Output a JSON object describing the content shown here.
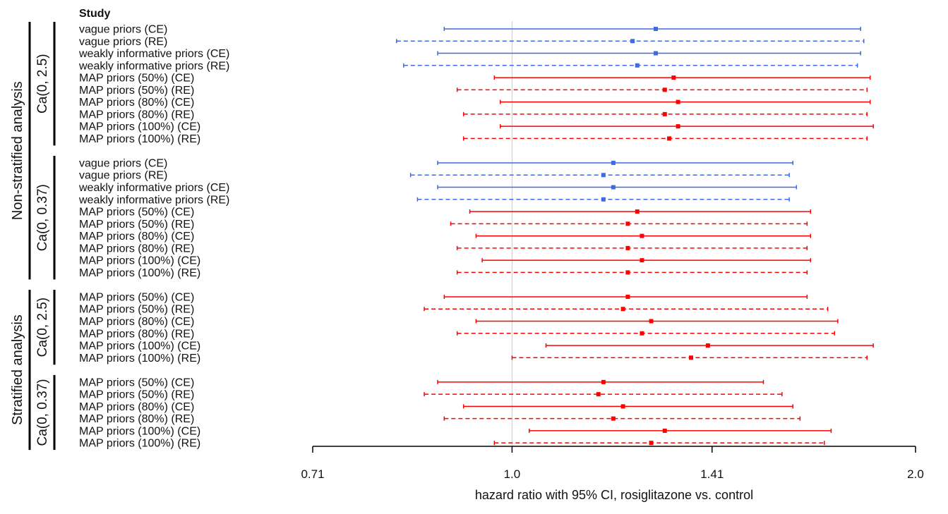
{
  "chart_data": {
    "type": "forest",
    "header": "Study",
    "xlabel": "hazard ratio with 95% CI, rosiglitazone vs. control",
    "x_scale": "log",
    "xlim": [
      0.71,
      2.0
    ],
    "ticks": [
      {
        "value": 0.71,
        "label": "0.71"
      },
      {
        "value": 1.0,
        "label": "1.0"
      },
      {
        "value": 1.41,
        "label": "1.41"
      },
      {
        "value": 2.0,
        "label": "2.0"
      }
    ],
    "reference_line": 1.0,
    "colors": {
      "vague_weak": "#4169e1",
      "map": "#ff0000",
      "reference": "#cccccc",
      "axis": "#000000"
    },
    "groups": [
      {
        "label": "Non-stratified analysis",
        "subgroups": [
          {
            "label": "Ca(0, 2.5)",
            "rows": [
              {
                "label": "vague priors (CE)",
                "est": 1.28,
                "lo": 0.89,
                "hi": 1.82,
                "color": "blue",
                "dashed": false
              },
              {
                "label": "vague priors (RE)",
                "est": 1.23,
                "lo": 0.82,
                "hi": 1.83,
                "color": "blue",
                "dashed": true
              },
              {
                "label": "weakly informative priors (CE)",
                "est": 1.28,
                "lo": 0.88,
                "hi": 1.82,
                "color": "blue",
                "dashed": false
              },
              {
                "label": "weakly informative priors (RE)",
                "est": 1.24,
                "lo": 0.83,
                "hi": 1.81,
                "color": "blue",
                "dashed": true
              },
              {
                "label": "MAP priors (50%) (CE)",
                "est": 1.32,
                "lo": 0.97,
                "hi": 1.85,
                "color": "red",
                "dashed": false
              },
              {
                "label": "MAP priors (50%) (RE)",
                "est": 1.3,
                "lo": 0.91,
                "hi": 1.84,
                "color": "red",
                "dashed": true
              },
              {
                "label": "MAP priors (80%) (CE)",
                "est": 1.33,
                "lo": 0.98,
                "hi": 1.85,
                "color": "red",
                "dashed": false
              },
              {
                "label": "MAP priors (80%) (RE)",
                "est": 1.3,
                "lo": 0.92,
                "hi": 1.84,
                "color": "red",
                "dashed": true
              },
              {
                "label": "MAP priors (100%) (CE)",
                "est": 1.33,
                "lo": 0.98,
                "hi": 1.86,
                "color": "red",
                "dashed": false
              },
              {
                "label": "MAP priors (100%) (RE)",
                "est": 1.31,
                "lo": 0.92,
                "hi": 1.84,
                "color": "red",
                "dashed": true
              }
            ]
          },
          {
            "label": "Ca(0, 0.37)",
            "rows": [
              {
                "label": "vague priors (CE)",
                "est": 1.19,
                "lo": 0.88,
                "hi": 1.62,
                "color": "blue",
                "dashed": false
              },
              {
                "label": "vague priors (RE)",
                "est": 1.17,
                "lo": 0.84,
                "hi": 1.61,
                "color": "blue",
                "dashed": true
              },
              {
                "label": "weakly informative priors (CE)",
                "est": 1.19,
                "lo": 0.88,
                "hi": 1.63,
                "color": "blue",
                "dashed": false
              },
              {
                "label": "weakly informative priors (RE)",
                "est": 1.17,
                "lo": 0.85,
                "hi": 1.61,
                "color": "blue",
                "dashed": true
              },
              {
                "label": "MAP priors (50%) (CE)",
                "est": 1.24,
                "lo": 0.93,
                "hi": 1.67,
                "color": "red",
                "dashed": false
              },
              {
                "label": "MAP priors (50%) (RE)",
                "est": 1.22,
                "lo": 0.9,
                "hi": 1.66,
                "color": "red",
                "dashed": true
              },
              {
                "label": "MAP priors (80%) (CE)",
                "est": 1.25,
                "lo": 0.94,
                "hi": 1.67,
                "color": "red",
                "dashed": false
              },
              {
                "label": "MAP priors (80%) (RE)",
                "est": 1.22,
                "lo": 0.91,
                "hi": 1.66,
                "color": "red",
                "dashed": true
              },
              {
                "label": "MAP priors (100%) (CE)",
                "est": 1.25,
                "lo": 0.95,
                "hi": 1.67,
                "color": "red",
                "dashed": false
              },
              {
                "label": "MAP priors (100%) (RE)",
                "est": 1.22,
                "lo": 0.91,
                "hi": 1.66,
                "color": "red",
                "dashed": true
              }
            ]
          }
        ]
      },
      {
        "label": "Stratified analysis",
        "subgroups": [
          {
            "label": "Ca(0, 2.5)",
            "rows": [
              {
                "label": "MAP priors (50%) (CE)",
                "est": 1.22,
                "lo": 0.89,
                "hi": 1.66,
                "color": "red",
                "dashed": false
              },
              {
                "label": "MAP priors (50%) (RE)",
                "est": 1.21,
                "lo": 0.86,
                "hi": 1.72,
                "color": "red",
                "dashed": true
              },
              {
                "label": "MAP priors (80%) (CE)",
                "est": 1.27,
                "lo": 0.94,
                "hi": 1.75,
                "color": "red",
                "dashed": false
              },
              {
                "label": "MAP priors (80%) (RE)",
                "est": 1.25,
                "lo": 0.91,
                "hi": 1.74,
                "color": "red",
                "dashed": true
              },
              {
                "label": "MAP priors (100%) (CE)",
                "est": 1.4,
                "lo": 1.06,
                "hi": 1.86,
                "color": "red",
                "dashed": false
              },
              {
                "label": "MAP priors (100%) (RE)",
                "est": 1.36,
                "lo": 1.0,
                "hi": 1.84,
                "color": "red",
                "dashed": true
              }
            ]
          },
          {
            "label": "Ca(0, 0.37)",
            "rows": [
              {
                "label": "MAP priors (50%) (CE)",
                "est": 1.17,
                "lo": 0.88,
                "hi": 1.54,
                "color": "red",
                "dashed": false
              },
              {
                "label": "MAP priors (50%) (RE)",
                "est": 1.16,
                "lo": 0.86,
                "hi": 1.59,
                "color": "red",
                "dashed": true
              },
              {
                "label": "MAP priors (80%) (CE)",
                "est": 1.21,
                "lo": 0.92,
                "hi": 1.62,
                "color": "red",
                "dashed": false
              },
              {
                "label": "MAP priors (80%) (RE)",
                "est": 1.19,
                "lo": 0.89,
                "hi": 1.64,
                "color": "red",
                "dashed": true
              },
              {
                "label": "MAP priors (100%) (CE)",
                "est": 1.3,
                "lo": 1.03,
                "hi": 1.73,
                "color": "red",
                "dashed": false
              },
              {
                "label": "MAP priors (100%) (RE)",
                "est": 1.27,
                "lo": 0.97,
                "hi": 1.71,
                "color": "red",
                "dashed": true
              }
            ]
          }
        ]
      }
    ]
  }
}
